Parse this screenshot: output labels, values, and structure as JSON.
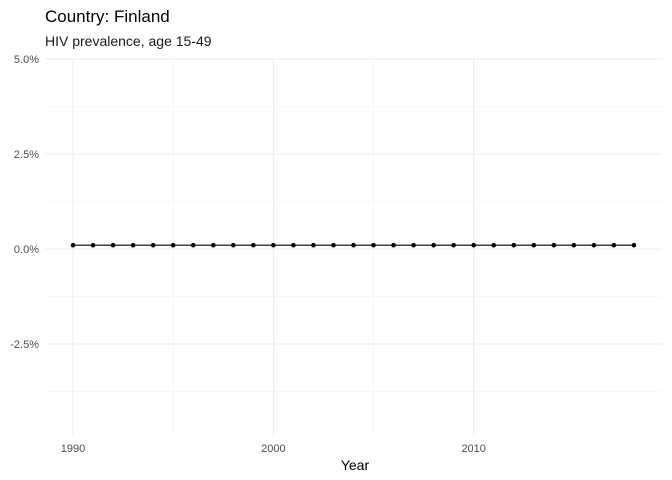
{
  "chart_data": {
    "type": "line",
    "title": "Country: Finland",
    "subtitle": "HIV prevalence, age 15-49",
    "xlabel": "Year",
    "ylabel": "",
    "xlim": [
      1988.6,
      2019.4
    ],
    "ylim": [
      -3.75,
      5.0
    ],
    "x_ticks": [
      1990,
      2000,
      2010
    ],
    "x_minor_ticks": [
      1995,
      2005,
      2015
    ],
    "y_ticks": [
      5.0,
      2.5,
      0.0,
      -2.5
    ],
    "y_tick_labels": [
      "5.0%",
      "2.5%",
      "0.0%",
      "-2.5%"
    ],
    "y_minor_ticks": [
      3.75,
      1.25,
      -1.25,
      -3.75
    ],
    "grid": true,
    "legend": "none",
    "series": [
      {
        "x": [
          1990,
          1991,
          1992,
          1993,
          1994,
          1995,
          1996,
          1997,
          1998,
          1999,
          2000,
          2001,
          2002,
          2003,
          2004,
          2005,
          2006,
          2007,
          2008,
          2009,
          2010,
          2011,
          2012,
          2013,
          2014,
          2015,
          2016,
          2017,
          2018
        ],
        "values": [
          0.1,
          0.1,
          0.1,
          0.1,
          0.1,
          0.1,
          0.1,
          0.1,
          0.1,
          0.1,
          0.1,
          0.1,
          0.1,
          0.1,
          0.1,
          0.1,
          0.1,
          0.1,
          0.1,
          0.1,
          0.1,
          0.1,
          0.1,
          0.1,
          0.1,
          0.1,
          0.1,
          0.1,
          0.1
        ]
      }
    ]
  }
}
